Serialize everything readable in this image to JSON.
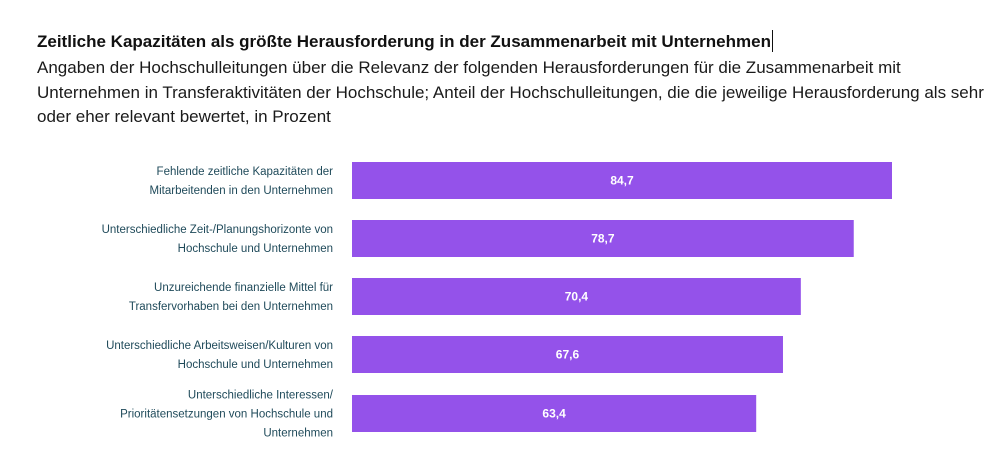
{
  "header": {
    "title": "Zeitliche Kapazitäten als größte Herausforderung in der Zusammenarbeit mit Unternehmen",
    "subtitle": "Angaben der Hochschulleitungen über die Relevanz der folgenden Herausforderungen für die Zusammenarbeit mit Unternehmen in Transferaktivitäten der Hochschule; Anteil der Hochschulleitungen, die die jeweilige Herausforderung als sehr oder eher relevant bewertet, in Prozent"
  },
  "colors": {
    "bar": "#9452ea",
    "label_text": "#1f4a5a",
    "value_text": "#ffffff"
  },
  "chart_data": {
    "type": "bar",
    "orientation": "horizontal",
    "title": "Zeitliche Kapazitäten als größte Herausforderung in der Zusammenarbeit mit Unternehmen",
    "subtitle": "Angaben der Hochschulleitungen über die Relevanz der folgenden Herausforderungen für die Zusammenarbeit mit Unternehmen in Transferaktivitäten der Hochschule; Anteil der Hochschulleitungen, die die jeweilige Herausforderung als sehr oder eher relevant bewertet, in Prozent",
    "xlabel": "",
    "ylabel": "",
    "xlim": [
      0,
      100
    ],
    "grid": false,
    "legend": "none",
    "categories": [
      [
        "Fehlende zeitliche Kapazitäten der",
        "Mitarbeitenden in den Unternehmen"
      ],
      [
        "Unterschiedliche Zeit-/Planungshorizonte von",
        "Hochschule und Unternehmen"
      ],
      [
        "Unzureichende finanzielle Mittel für",
        "Transfervorhaben bei den Unternehmen"
      ],
      [
        "Unterschiedliche Arbeitsweisen/Kulturen von",
        "Hochschule und Unternehmen"
      ],
      [
        "Unterschiedliche Interessen/",
        "Prioritätensetzungen von Hochschule und",
        "Unternehmen"
      ]
    ],
    "values": [
      84.7,
      78.7,
      70.4,
      67.6,
      63.4
    ],
    "value_labels": [
      "84,7",
      "78,7",
      "70,4",
      "67,6",
      "63,4"
    ]
  }
}
